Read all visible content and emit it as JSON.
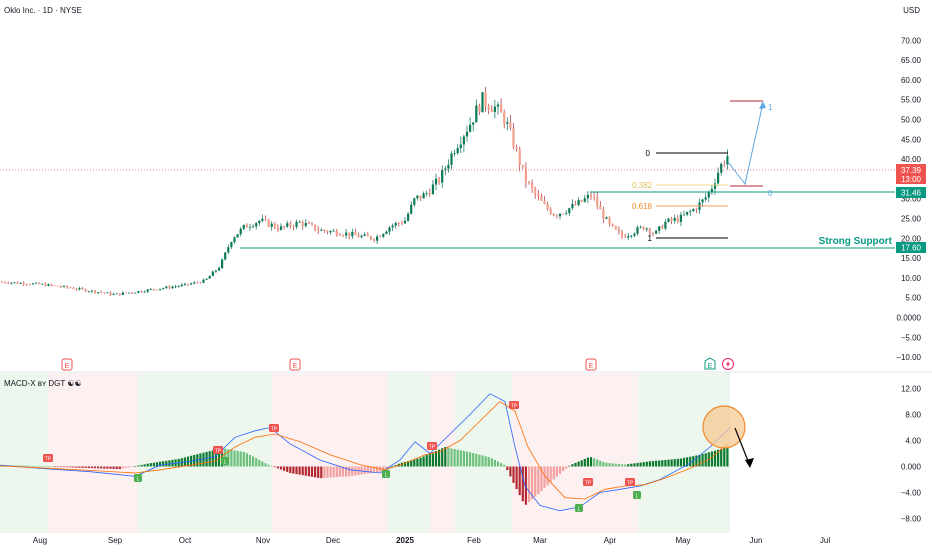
{
  "header": {
    "symbol_title": "Oklo Inc. · 1D · NYSE",
    "currency": "USD"
  },
  "price_axis": {
    "ticks": [
      -10,
      -5,
      0,
      5,
      10,
      15,
      20,
      25,
      30,
      35,
      40,
      45,
      50,
      55,
      60,
      65,
      70
    ],
    "range": [
      -13,
      73
    ]
  },
  "last_price": {
    "value": "37.39",
    "countdown": "13:00",
    "color": "#ef5350"
  },
  "levels": [
    {
      "name": "resistance",
      "value": 31.46,
      "label": "31.46",
      "color": "#089981"
    },
    {
      "name": "strong-support",
      "value": 17.6,
      "label": "17.60",
      "color": "#089981",
      "caption": "Strong Support"
    }
  ],
  "fib": {
    "labels": [
      "0",
      "0.382",
      "0.618",
      "1"
    ],
    "values": [
      41,
      33.5,
      28,
      20
    ],
    "colors": [
      "#000000",
      "#f3d78a",
      "#f5a25d",
      "#000000"
    ]
  },
  "projection": {
    "label_top": "1",
    "label_bottom": "0",
    "top_value": 55,
    "bottom_value": 33,
    "color": "#5aa9e6"
  },
  "x_axis": {
    "labels": [
      "Aug",
      "Sep",
      "Oct",
      "Nov",
      "Dec",
      "2025",
      "Feb",
      "Mar",
      "Apr",
      "May",
      "Jun",
      "Jul"
    ]
  },
  "event_markers": {
    "earnings": [
      "E",
      "E",
      "E",
      "E"
    ],
    "dividend_icon": "lightning-icon"
  },
  "macd": {
    "title": "MACD-X ʙʏ DGT ☯☯",
    "axis_ticks": [
      "12.00",
      "8.00",
      "4.00",
      "0.000",
      "−4.00",
      "−8.00"
    ],
    "tick_values": [
      12,
      8,
      4,
      0,
      -4,
      -8
    ],
    "tp_label": "TP",
    "buy_label": "L",
    "colors": {
      "macd_line": "#2962ff",
      "signal_line": "#ff6d00",
      "hist_pos": "#089981",
      "hist_neg": "#b22833",
      "bg_green": "#e8f5e9",
      "bg_red": "#fdecec"
    }
  },
  "chart_data": {
    "type": "candlestick",
    "title": "Oklo Inc. · 1D · NYSE",
    "x": [
      "Jul",
      "Aug",
      "Sep",
      "Oct",
      "Nov",
      "Dec",
      "2025",
      "Feb",
      "Mar",
      "Apr",
      "May"
    ],
    "y_unit": "USD",
    "ylim": [
      -13,
      73
    ],
    "price_path": [
      [
        "Jul",
        9.0
      ],
      [
        "Aug",
        8.5
      ],
      [
        "Aug",
        7.5
      ],
      [
        "Sep",
        6.0
      ],
      [
        "Sep",
        6.5
      ],
      [
        "Oct",
        8.0
      ],
      [
        "Oct",
        11.0
      ],
      [
        "Oct",
        19.5
      ],
      [
        "Oct",
        24.0
      ],
      [
        "Nov",
        23.0
      ],
      [
        "Nov",
        22.0
      ],
      [
        "Dec",
        21.5
      ],
      [
        "Dec",
        21.0
      ],
      [
        "Dec",
        20.0
      ],
      [
        "2025",
        24.5
      ],
      [
        "2025",
        31.0
      ],
      [
        "2025",
        38.0
      ],
      [
        "Feb",
        46.0
      ],
      [
        "Feb",
        55.0
      ],
      [
        "Feb",
        53.0
      ],
      [
        "Mar",
        42.0
      ],
      [
        "Mar",
        32.0
      ],
      [
        "Mar",
        27.0
      ],
      [
        "Mar",
        25.5
      ],
      [
        "Mar",
        28.0
      ],
      [
        "Apr",
        24.0
      ],
      [
        "Apr",
        20.5
      ],
      [
        "Apr",
        22.5
      ],
      [
        "May",
        26.0
      ],
      [
        "May",
        30.5
      ],
      [
        "May",
        37.0
      ],
      [
        "May",
        41.0
      ],
      [
        "May",
        37.39
      ]
    ],
    "macd_histogram_shape": "positive Jul-Oct peaks +3, negative Nov-Jan ~ -2, positive Jan-Feb ~ +3, deep negative Feb-Mar to -6, positive Apr-May rising to +3"
  }
}
